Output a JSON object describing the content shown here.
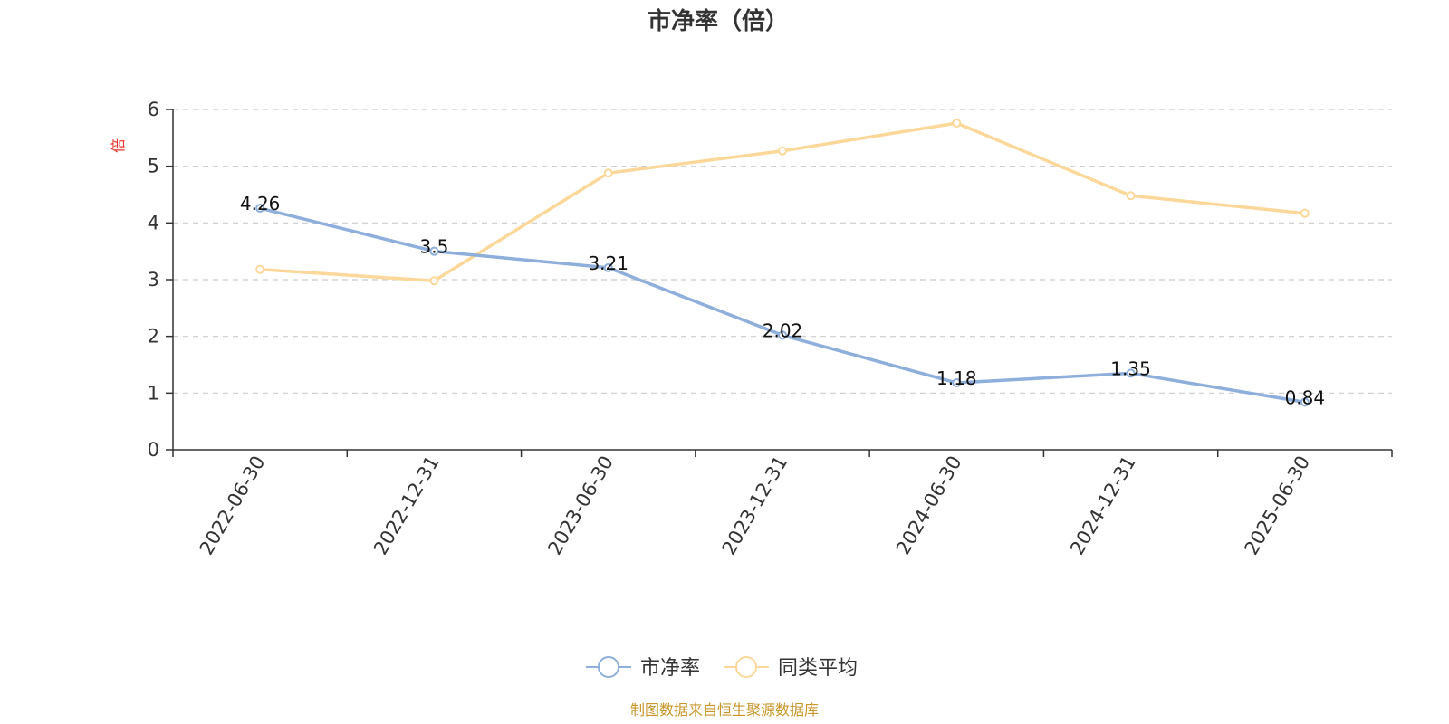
{
  "chart_data": {
    "type": "line",
    "title": "市净率（倍）",
    "ylabel": "倍",
    "xlabel": "",
    "categories": [
      "2022-06-30",
      "2022-12-31",
      "2023-06-30",
      "2023-12-31",
      "2024-06-30",
      "2024-12-31",
      "2025-06-30"
    ],
    "ylim": [
      0,
      6
    ],
    "yticks": [
      0,
      1,
      2,
      3,
      4,
      5,
      6
    ],
    "grid": true,
    "legend_position": "bottom-center",
    "series": [
      {
        "name": "市净率",
        "color": "#8eaedc",
        "values": [
          4.26,
          3.5,
          3.21,
          2.02,
          1.18,
          1.35,
          0.84
        ],
        "labels": [
          "4.26",
          "3.5",
          "3.21",
          "2.02",
          "1.18",
          "1.35",
          "0.84"
        ]
      },
      {
        "name": "同类平均",
        "color": "#fbd899",
        "values": [
          3.18,
          2.98,
          4.88,
          5.27,
          5.76,
          4.48,
          4.17
        ]
      }
    ]
  },
  "source_note": "制图数据来自恒生聚源数据库"
}
